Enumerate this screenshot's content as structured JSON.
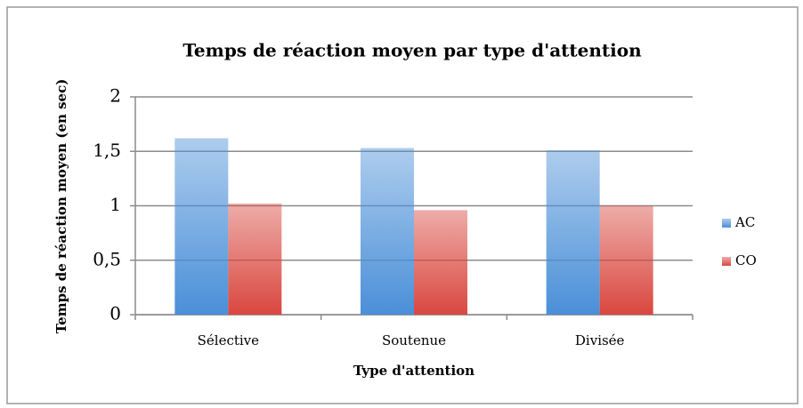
{
  "chart_data": {
    "type": "bar",
    "title": "Temps de réaction moyen par type d'attention",
    "x_label": "Type d'attention",
    "y_label": "Temps de réaction moyen (en sec)",
    "categories": [
      "Sélective",
      "Soutenue",
      "Divisée"
    ],
    "series": [
      {
        "name": "AC",
        "color": "#4a8fd8",
        "values": [
          1.62,
          1.53,
          1.51
        ]
      },
      {
        "name": "CO",
        "color": "#d9473f",
        "values": [
          1.02,
          0.96,
          1.0
        ]
      }
    ],
    "ylim": [
      0,
      2
    ],
    "yticks": [
      0,
      {
        "value": 0.5,
        "label": "0,5"
      },
      1,
      {
        "value": 1.5,
        "label": "1,5"
      },
      2
    ],
    "grid": true,
    "legend": "right"
  }
}
